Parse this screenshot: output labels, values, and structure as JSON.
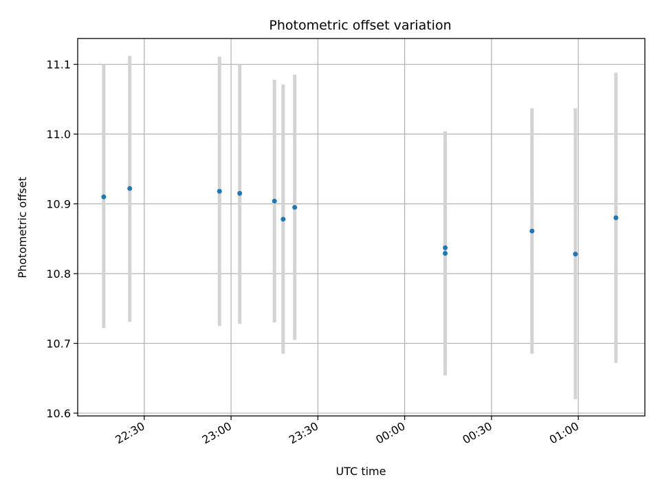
{
  "chart_data": {
    "type": "scatter",
    "title": "Photometric offset variation",
    "xlabel": "UTC time",
    "ylabel": "Photometric offset",
    "grid": true,
    "xlim": [
      "22:07",
      "01:23"
    ],
    "ylim": [
      10.596,
      11.137
    ],
    "x_ticks": [
      "22:30",
      "23:00",
      "23:30",
      "00:00",
      "00:30",
      "01:00"
    ],
    "y_ticks": [
      "10.6",
      "10.7",
      "10.8",
      "10.9",
      "11.0",
      "11.1"
    ],
    "colors": {
      "points": "#1f77b4",
      "error_bars": "#d3d3d3",
      "grid": "#b0b0b0"
    },
    "points": [
      {
        "x": "22:16",
        "y": 10.91,
        "ylow": 10.722,
        "yhigh": 11.1
      },
      {
        "x": "22:25",
        "y": 10.922,
        "ylow": 10.731,
        "yhigh": 11.112
      },
      {
        "x": "22:56",
        "y": 10.918,
        "ylow": 10.725,
        "yhigh": 11.111
      },
      {
        "x": "23:03",
        "y": 10.915,
        "ylow": 10.728,
        "yhigh": 11.1
      },
      {
        "x": "23:15",
        "y": 10.904,
        "ylow": 10.73,
        "yhigh": 11.078
      },
      {
        "x": "23:18",
        "y": 10.878,
        "ylow": 10.685,
        "yhigh": 11.071
      },
      {
        "x": "23:22",
        "y": 10.895,
        "ylow": 10.705,
        "yhigh": 11.085
      },
      {
        "x": "00:14",
        "y": 10.837,
        "ylow": 10.67,
        "yhigh": 11.004
      },
      {
        "x": "00:14",
        "y": 10.829,
        "ylow": 10.654,
        "yhigh": 10.99
      },
      {
        "x": "00:44",
        "y": 10.861,
        "ylow": 10.685,
        "yhigh": 11.037
      },
      {
        "x": "00:59",
        "y": 10.828,
        "ylow": 10.62,
        "yhigh": 11.037
      },
      {
        "x": "01:13",
        "y": 10.88,
        "ylow": 10.672,
        "yhigh": 11.088
      }
    ]
  }
}
